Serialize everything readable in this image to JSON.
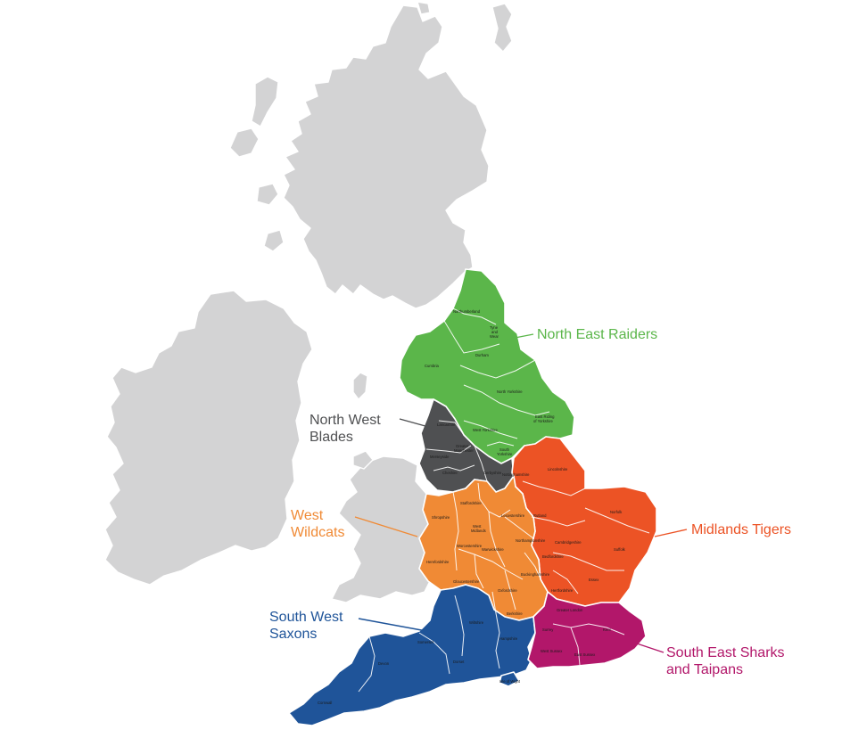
{
  "colors": {
    "land": "#d3d3d4",
    "north_east": "#5bb64a",
    "north_west": "#4f5052",
    "west": "#f08a35",
    "midlands": "#ec5325",
    "south_west": "#1f5499",
    "south_east": "#b2176a"
  },
  "teams": {
    "north_east": "North East Raiders",
    "north_west_line1": "North West",
    "north_west_line2": "Blades",
    "west_line1": "West",
    "west_line2": "Wildcats",
    "midlands": "Midlands Tigers",
    "south_west_line1": "South West",
    "south_west_line2": "Saxons",
    "south_east_line1": "South East Sharks",
    "south_east_line2": "and Taipans"
  },
  "counties": {
    "northumberland": "Northumberland",
    "tyne_and_wear_1": "Tyne",
    "tyne_and_wear_2": "and",
    "tyne_and_wear_3": "Wear",
    "durham": "Durham",
    "cumbria": "Cumbria",
    "north_yorkshire": "North Yorkshire",
    "east_riding_1": "East Riding",
    "east_riding_2": "of Yorkshire",
    "west_yorkshire": "West Yorkshire",
    "south_yorkshire_1": "South",
    "south_yorkshire_2": "Yorkshire",
    "lancashire": "Lancashire",
    "greater_manchester_1": "Greater",
    "greater_manchester_2": "Manchester",
    "merseyside": "Merseyside",
    "cheshire": "Cheshire",
    "derbyshire": "Derbyshire",
    "nottinghamshire": "Nottinghamshire",
    "lincolnshire": "Lincolnshire",
    "shropshire": "Shropshire",
    "staffordshire": "Staffordshire",
    "leicestershire": "Leicestershire",
    "rutland": "Rutland",
    "west_midlands_1": "West",
    "west_midlands_2": "Midlands",
    "warwickshire": "Warwickshire",
    "worcestershire": "Worcestershire",
    "northamptonshire": "Northamptonshire",
    "herefordshire": "Herefordshire",
    "gloucestershire": "Gloucestershire",
    "oxfordshire": "Oxfordshire",
    "buckinghamshire": "Buckinghamshire",
    "bedfordshire": "Bedfordshire",
    "hertfordshire": "Hertfordshire",
    "berkshire": "Berkshire",
    "norfolk": "Norfolk",
    "suffolk": "Suffolk",
    "cambridgeshire": "Cambridgeshire",
    "essex": "Essex",
    "greater_london": "Greater London",
    "surrey": "Surrey",
    "kent": "Kent",
    "west_sussex": "West Sussex",
    "east_sussex": "East Sussex",
    "wiltshire": "Wiltshire",
    "hampshire": "Hampshire",
    "somerset": "Somerset",
    "dorset": "Dorset",
    "devon": "Devon",
    "cornwall": "Cornwall",
    "isle_of_wight": "Isle of Wight"
  }
}
